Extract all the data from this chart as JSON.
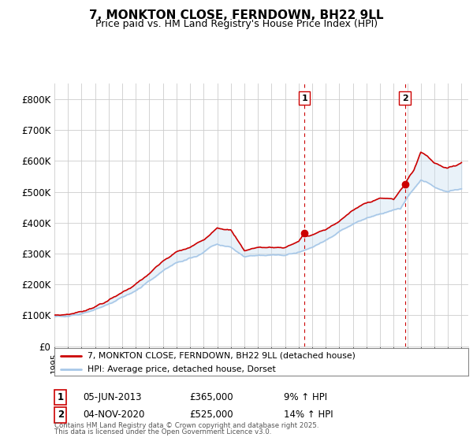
{
  "title": "7, MONKTON CLOSE, FERNDOWN, BH22 9LL",
  "subtitle": "Price paid vs. HM Land Registry's House Price Index (HPI)",
  "legend_line1": "7, MONKTON CLOSE, FERNDOWN, BH22 9LL (detached house)",
  "legend_line2": "HPI: Average price, detached house, Dorset",
  "annotation1": {
    "label": "1",
    "date": "05-JUN-2013",
    "price": "£365,000",
    "pct": "9% ↑ HPI"
  },
  "annotation2": {
    "label": "2",
    "date": "04-NOV-2020",
    "price": "£525,000",
    "pct": "14% ↑ HPI"
  },
  "footnote1": "Contains HM Land Registry data © Crown copyright and database right 2025.",
  "footnote2": "This data is licensed under the Open Government Licence v3.0.",
  "hpi_color": "#a8c8e8",
  "hpi_fill_color": "#c8dff0",
  "price_color": "#cc0000",
  "background_color": "#ffffff",
  "plot_bg_color": "#ffffff",
  "vline_color": "#cc0000",
  "grid_color": "#cccccc",
  "ylim": [
    0,
    850000
  ],
  "yticks": [
    0,
    100000,
    200000,
    300000,
    400000,
    500000,
    600000,
    700000,
    800000
  ],
  "x_start_year": 1995,
  "x_end_year": 2025,
  "vline1_year": 2013.42,
  "vline2_year": 2020.83,
  "purchase1_year": 2013.42,
  "purchase1_price": 365000,
  "purchase2_year": 2020.83,
  "purchase2_price": 525000
}
